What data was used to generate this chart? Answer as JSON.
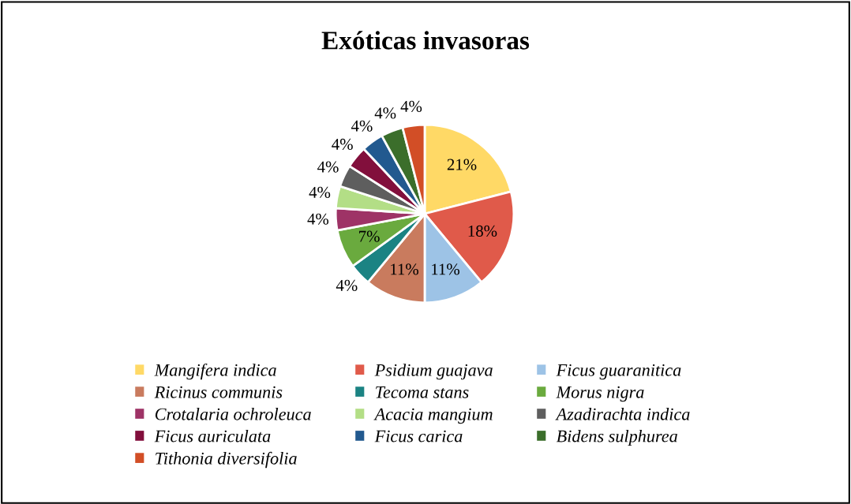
{
  "chart_data": {
    "type": "pie",
    "title": "Exóticas invasoras",
    "categories": [
      "Mangifera indica",
      "Psidium guajava",
      "Ficus guaranitica",
      "Ricinus communis",
      "Tecoma stans",
      "Morus nigra",
      "Crotalaria ochroleuca",
      "Acacia mangium",
      "Azadirachta indica",
      "Ficus auriculata",
      "Ficus carica",
      "Bidens sulphurea",
      "Tithonia diversifolia"
    ],
    "values": [
      21,
      18,
      11,
      11,
      4,
      7,
      4,
      4,
      4,
      4,
      4,
      4,
      4
    ],
    "colors": [
      "#ffd966",
      "#e05a4a",
      "#9dc3e6",
      "#c97b5e",
      "#1b8383",
      "#6aaa3e",
      "#9e3366",
      "#b3de86",
      "#5e5e5e",
      "#820f3c",
      "#22598f",
      "#3b6e2b",
      "#d24e26"
    ],
    "value_labels": [
      "21%",
      "18%",
      "11%",
      "11%",
      "4%",
      "7%",
      "4%",
      "4%",
      "4%",
      "4%",
      "4%",
      "4%",
      "4%"
    ],
    "legend": "bottom"
  }
}
